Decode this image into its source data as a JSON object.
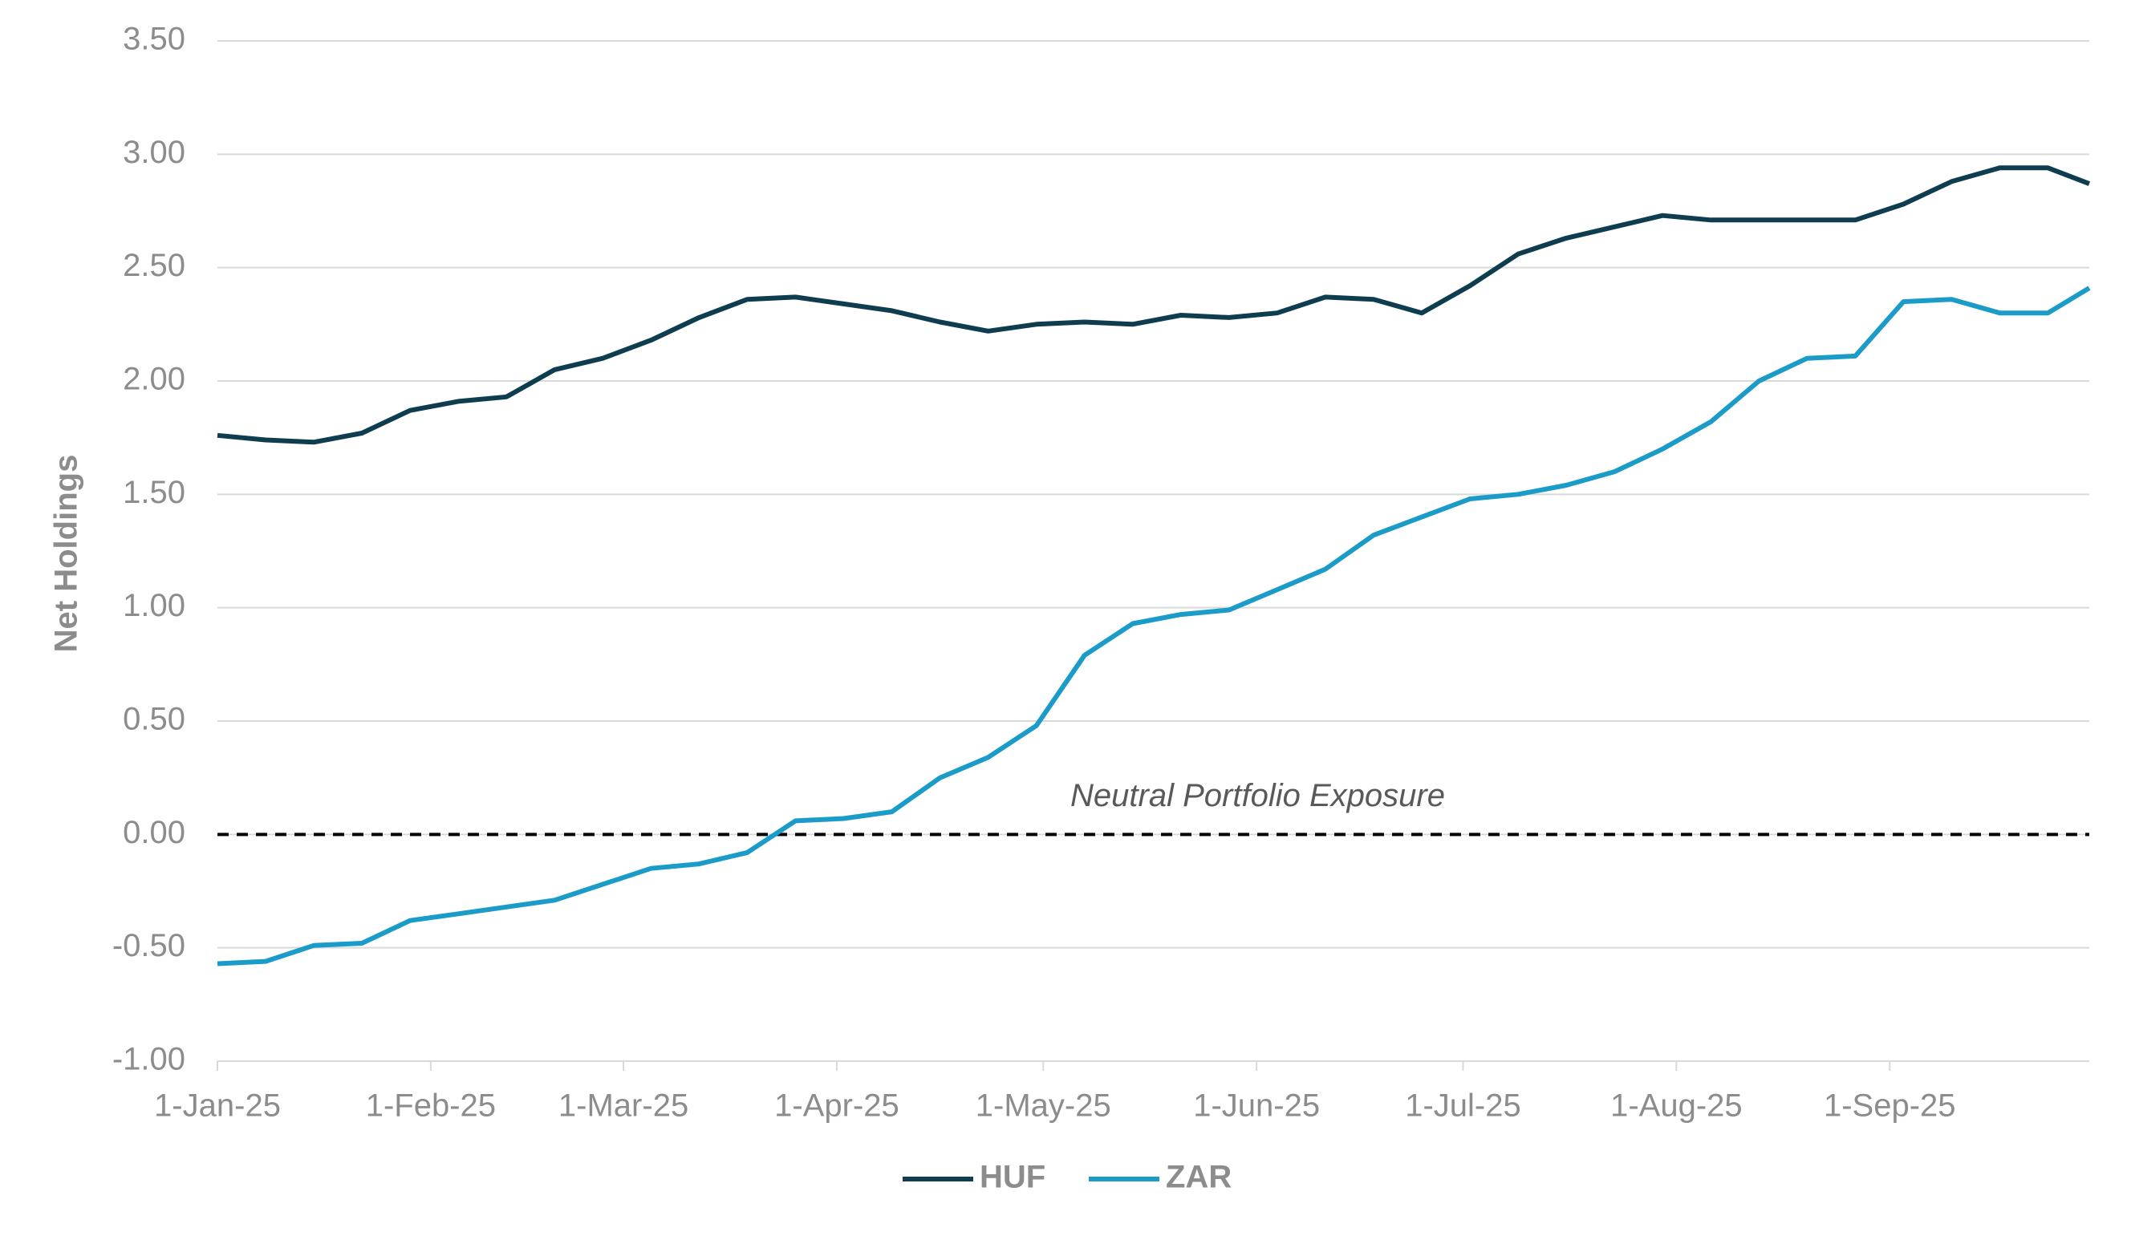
{
  "chart_data": {
    "type": "line",
    "y_label": "Net Holdings",
    "annotation": "Neutral Portfolio Exposure",
    "reference_line": 0,
    "x": [
      "2025-01-01",
      "2025-01-08",
      "2025-01-15",
      "2025-01-22",
      "2025-01-29",
      "2025-02-05",
      "2025-02-12",
      "2025-02-19",
      "2025-02-26",
      "2025-03-05",
      "2025-03-12",
      "2025-03-19",
      "2025-03-26",
      "2025-04-02",
      "2025-04-09",
      "2025-04-16",
      "2025-04-23",
      "2025-04-30",
      "2025-05-07",
      "2025-05-14",
      "2025-05-21",
      "2025-05-28",
      "2025-06-04",
      "2025-06-11",
      "2025-06-18",
      "2025-06-25",
      "2025-07-02",
      "2025-07-09",
      "2025-07-16",
      "2025-07-23",
      "2025-07-30",
      "2025-08-06",
      "2025-08-13",
      "2025-08-20",
      "2025-08-27",
      "2025-09-03",
      "2025-09-10",
      "2025-09-17",
      "2025-09-24",
      "2025-09-30"
    ],
    "series": [
      {
        "name": "HUF",
        "color": "#0f3d50",
        "values": [
          1.76,
          1.74,
          1.73,
          1.77,
          1.87,
          1.91,
          1.93,
          2.05,
          2.1,
          2.18,
          2.28,
          2.36,
          2.37,
          2.34,
          2.31,
          2.26,
          2.22,
          2.25,
          2.26,
          2.25,
          2.29,
          2.28,
          2.3,
          2.37,
          2.36,
          2.3,
          2.42,
          2.56,
          2.63,
          2.68,
          2.73,
          2.71,
          2.71,
          2.71,
          2.71,
          2.78,
          2.88,
          2.94,
          2.94,
          2.87
        ]
      },
      {
        "name": "ZAR",
        "color": "#1b9cc8",
        "values": [
          -0.57,
          -0.56,
          -0.49,
          -0.48,
          -0.38,
          -0.35,
          -0.32,
          -0.29,
          -0.22,
          -0.15,
          -0.13,
          -0.08,
          0.06,
          0.07,
          0.1,
          0.25,
          0.34,
          0.48,
          0.79,
          0.93,
          0.97,
          0.99,
          1.08,
          1.17,
          1.32,
          1.4,
          1.48,
          1.5,
          1.54,
          1.6,
          1.7,
          1.82,
          2.0,
          2.1,
          2.11,
          2.35,
          2.36,
          2.3,
          2.3,
          2.41
        ]
      }
    ],
    "xlim": [
      "2025-01-01",
      "2025-09-30"
    ],
    "xticks": [
      {
        "value": "2025-01-01",
        "label": "1-Jan-25"
      },
      {
        "value": "2025-02-01",
        "label": "1-Feb-25"
      },
      {
        "value": "2025-03-01",
        "label": "1-Mar-25"
      },
      {
        "value": "2025-04-01",
        "label": "1-Apr-25"
      },
      {
        "value": "2025-05-01",
        "label": "1-May-25"
      },
      {
        "value": "2025-06-01",
        "label": "1-Jun-25"
      },
      {
        "value": "2025-07-01",
        "label": "1-Jul-25"
      },
      {
        "value": "2025-08-01",
        "label": "1-Aug-25"
      },
      {
        "value": "2025-09-01",
        "label": "1-Sep-25"
      }
    ],
    "ylim": [
      -1,
      3.5
    ],
    "yticks": [
      {
        "value": -1,
        "label": "-1.00"
      },
      {
        "value": -0.5,
        "label": "-0.50"
      },
      {
        "value": 0,
        "label": "0.00"
      },
      {
        "value": 0.5,
        "label": "0.50"
      },
      {
        "value": 1,
        "label": "1.00"
      },
      {
        "value": 1.5,
        "label": "1.50"
      },
      {
        "value": 2,
        "label": "2.00"
      },
      {
        "value": 2.5,
        "label": "2.50"
      },
      {
        "value": 3,
        "label": "3.00"
      },
      {
        "value": 3.5,
        "label": "3.50"
      }
    ],
    "grid": true,
    "legend": "bottom"
  }
}
